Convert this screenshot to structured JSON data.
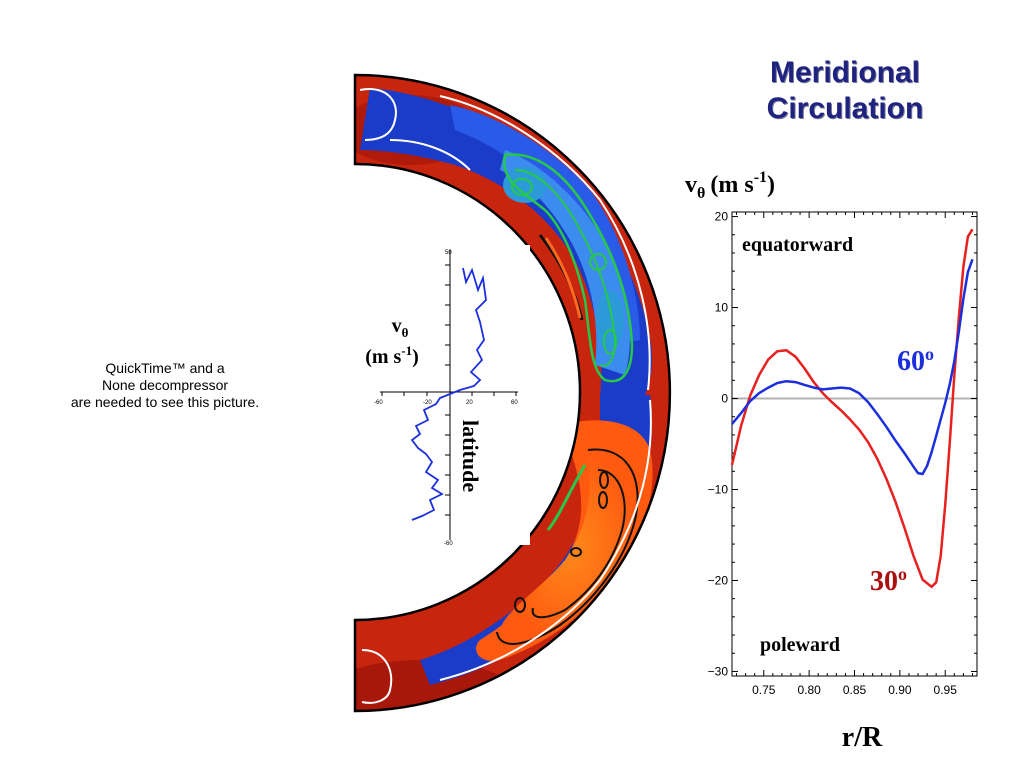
{
  "title_lines": [
    "Meridional",
    "Circulation"
  ],
  "quicktime_lines": [
    "QuickTime™ and a",
    "None decompressor",
    "are needed to see this picture."
  ],
  "colors": {
    "title": "#1f2380",
    "red_series": "#e8201f",
    "blue_series": "#1c2fdc",
    "zero_line": "#b3b3b3"
  },
  "inset_plot": {
    "ylabel_sym": "v",
    "ylabel_sub": "θ",
    "ylabel_units_main": "(m s",
    "ylabel_units_exp": "-1",
    "ylabel_units_close": ")",
    "xlabel": "latitude",
    "velocity_ticks": [
      "-60",
      "-20",
      "20",
      "60"
    ],
    "latitude_top": "50",
    "latitude_bottom": "-60"
  },
  "chart_data": {
    "type": "line",
    "ylabel_sym": "v",
    "ylabel_sub": "θ",
    "ylabel_units_main": "(m s",
    "ylabel_units_exp": "-1",
    "ylabel_units_close": ")",
    "xlabel": "r/R",
    "xlim": [
      0.715,
      0.985
    ],
    "ylim": [
      -30.5,
      20.5
    ],
    "x_ticks": [
      0.75,
      0.8,
      0.85,
      0.9,
      0.95
    ],
    "x_tick_labels": [
      "0.75",
      "0.80",
      "0.85",
      "0.90",
      "0.95"
    ],
    "y_ticks": [
      20,
      10,
      0,
      -10,
      -20,
      -30
    ],
    "y_tick_labels": [
      "20",
      "10",
      "0",
      "−10",
      "−20",
      "−30"
    ],
    "annotations": {
      "top": "equatorward",
      "bottom": "poleward"
    },
    "series": [
      {
        "label_main": "30",
        "label_sup": "o",
        "color": "#e8201f",
        "x": [
          0.715,
          0.725,
          0.735,
          0.745,
          0.755,
          0.765,
          0.775,
          0.785,
          0.795,
          0.805,
          0.815,
          0.825,
          0.835,
          0.845,
          0.855,
          0.865,
          0.875,
          0.885,
          0.895,
          0.905,
          0.915,
          0.925,
          0.935,
          0.94,
          0.945,
          0.95,
          0.955,
          0.96,
          0.965,
          0.97,
          0.975,
          0.98
        ],
        "y": [
          -7.3,
          -3.0,
          0.3,
          2.6,
          4.3,
          5.2,
          5.3,
          4.6,
          3.3,
          1.8,
          0.6,
          -0.4,
          -1.3,
          -2.3,
          -3.4,
          -4.8,
          -6.6,
          -8.8,
          -11.3,
          -14.2,
          -17.3,
          -19.9,
          -20.7,
          -20.2,
          -17.3,
          -11.7,
          -4.8,
          2.5,
          9.0,
          14.5,
          17.8,
          18.6
        ]
      },
      {
        "label_main": "60",
        "label_sup": "o",
        "color": "#1c2fdc",
        "x": [
          0.715,
          0.725,
          0.735,
          0.745,
          0.755,
          0.765,
          0.775,
          0.785,
          0.795,
          0.805,
          0.815,
          0.825,
          0.835,
          0.845,
          0.855,
          0.865,
          0.875,
          0.885,
          0.895,
          0.905,
          0.915,
          0.92,
          0.925,
          0.93,
          0.935,
          0.94,
          0.945,
          0.95,
          0.955,
          0.96,
          0.965,
          0.97,
          0.975,
          0.98
        ],
        "y": [
          -2.8,
          -1.6,
          -0.3,
          0.6,
          1.2,
          1.7,
          1.9,
          1.8,
          1.5,
          1.2,
          1.0,
          1.1,
          1.2,
          1.1,
          0.6,
          -0.4,
          -1.7,
          -3.1,
          -4.6,
          -6.0,
          -7.5,
          -8.2,
          -8.3,
          -7.4,
          -5.9,
          -4.1,
          -2.3,
          -0.5,
          1.6,
          4.1,
          7.4,
          11.0,
          13.9,
          15.3
        ]
      }
    ]
  }
}
